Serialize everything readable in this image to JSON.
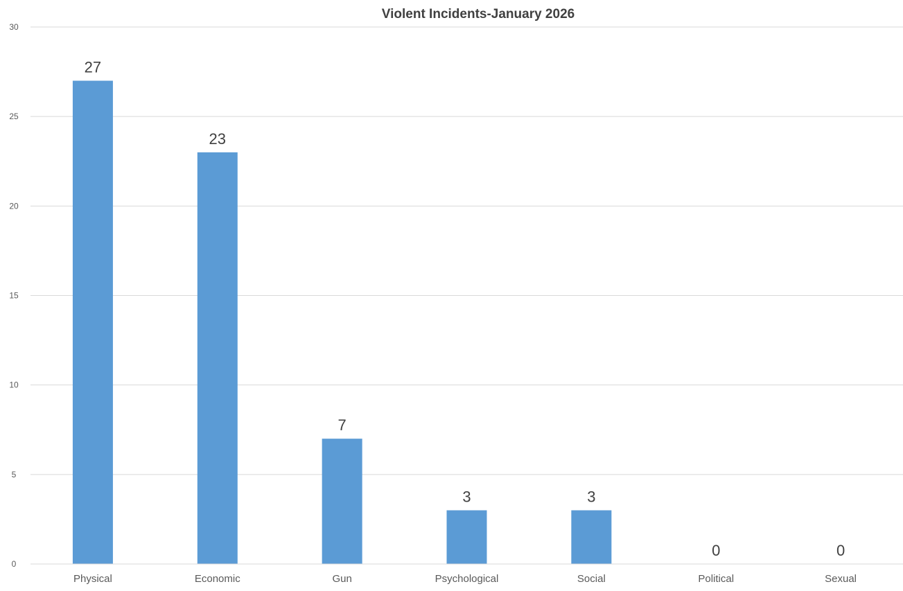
{
  "chart_data": {
    "type": "bar",
    "title": "Violent Incidents-January 2026",
    "xlabel": "",
    "ylabel": "",
    "categories": [
      "Physical",
      "Economic",
      "Gun",
      "Psychological",
      "Social",
      "Political",
      "Sexual"
    ],
    "values": [
      27,
      23,
      7,
      3,
      3,
      0,
      0
    ],
    "ylim": [
      0,
      30
    ],
    "yticks": [
      0,
      5,
      10,
      15,
      20,
      25,
      30
    ],
    "grid": true,
    "legend": "none",
    "data_labels": true,
    "bar_color": "#5b9bd5"
  }
}
